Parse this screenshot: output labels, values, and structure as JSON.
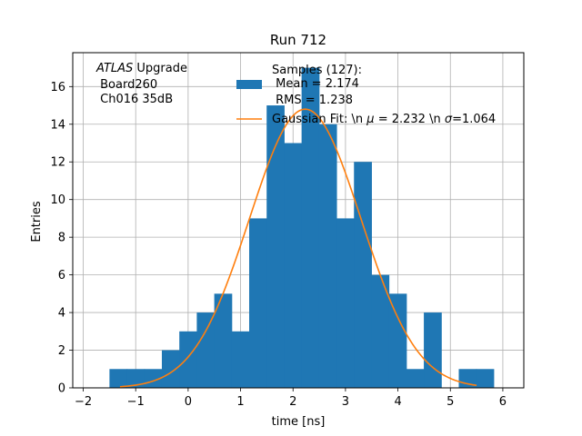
{
  "chart_data": {
    "type": "bar",
    "title": "Run 712",
    "xlabel": "time [ns]",
    "ylabel": "Entries",
    "xlim": [
      -2.2,
      6.4
    ],
    "ylim": [
      0,
      17.8
    ],
    "xticks": [
      -2,
      -1,
      0,
      1,
      2,
      3,
      4,
      5,
      6
    ],
    "yticks": [
      0,
      2,
      4,
      6,
      8,
      10,
      12,
      14,
      16
    ],
    "xtick_labels": [
      "−2",
      "−1",
      "0",
      "1",
      "2",
      "3",
      "4",
      "5",
      "6"
    ],
    "ytick_labels": [
      "0",
      "2",
      "4",
      "6",
      "8",
      "10",
      "12",
      "14",
      "16"
    ],
    "grid": true,
    "legend_position": "upper right",
    "colors": {
      "histogram": "#1f77b4",
      "fit": "#ff7f0e"
    },
    "histogram": {
      "bin_edges": [
        -1.5,
        -1.17,
        -0.83,
        -0.5,
        -0.17,
        0.17,
        0.5,
        0.83,
        1.17,
        1.5,
        1.83,
        2.17,
        2.5,
        2.83,
        3.17,
        3.5,
        3.83,
        4.17,
        4.5,
        4.83,
        5.17,
        5.5,
        5.83
      ],
      "counts": [
        1,
        1,
        1,
        2,
        3,
        4,
        5,
        3,
        9,
        15,
        13,
        17,
        14,
        9,
        12,
        6,
        5,
        1,
        4,
        0,
        1,
        1
      ],
      "x_left_edge": -1.5,
      "bin_width": 0.333,
      "legend_lines": [
        "Samples (127):",
        " Mean = 2.174",
        " RMS = 1.238"
      ]
    },
    "fit": {
      "mu": 2.232,
      "sigma": 1.064,
      "amplitude": 14.8,
      "x_range": [
        -1.3,
        5.5
      ],
      "label": "Gaussian Fit: \\n $\\mu$ = 2.232 \\n $\\sigma$=1.064"
    },
    "legend": {
      "samples_line1": "Samples (127):",
      "samples_line2": " Mean = 2.174",
      "samples_line3": " RMS = 1.238",
      "fit_prefix": "Gaussian Fit: \\n ",
      "fit_mu_symbol": "μ",
      "fit_mid": " = 2.232 \\n ",
      "fit_sigma_symbol": "σ",
      "fit_suffix": "=1.064"
    },
    "annotation": {
      "italic_part": "ATLAS",
      "rest_line1": " Upgrade",
      "line2": " Board260",
      "line3": " Ch016 35dB"
    }
  }
}
